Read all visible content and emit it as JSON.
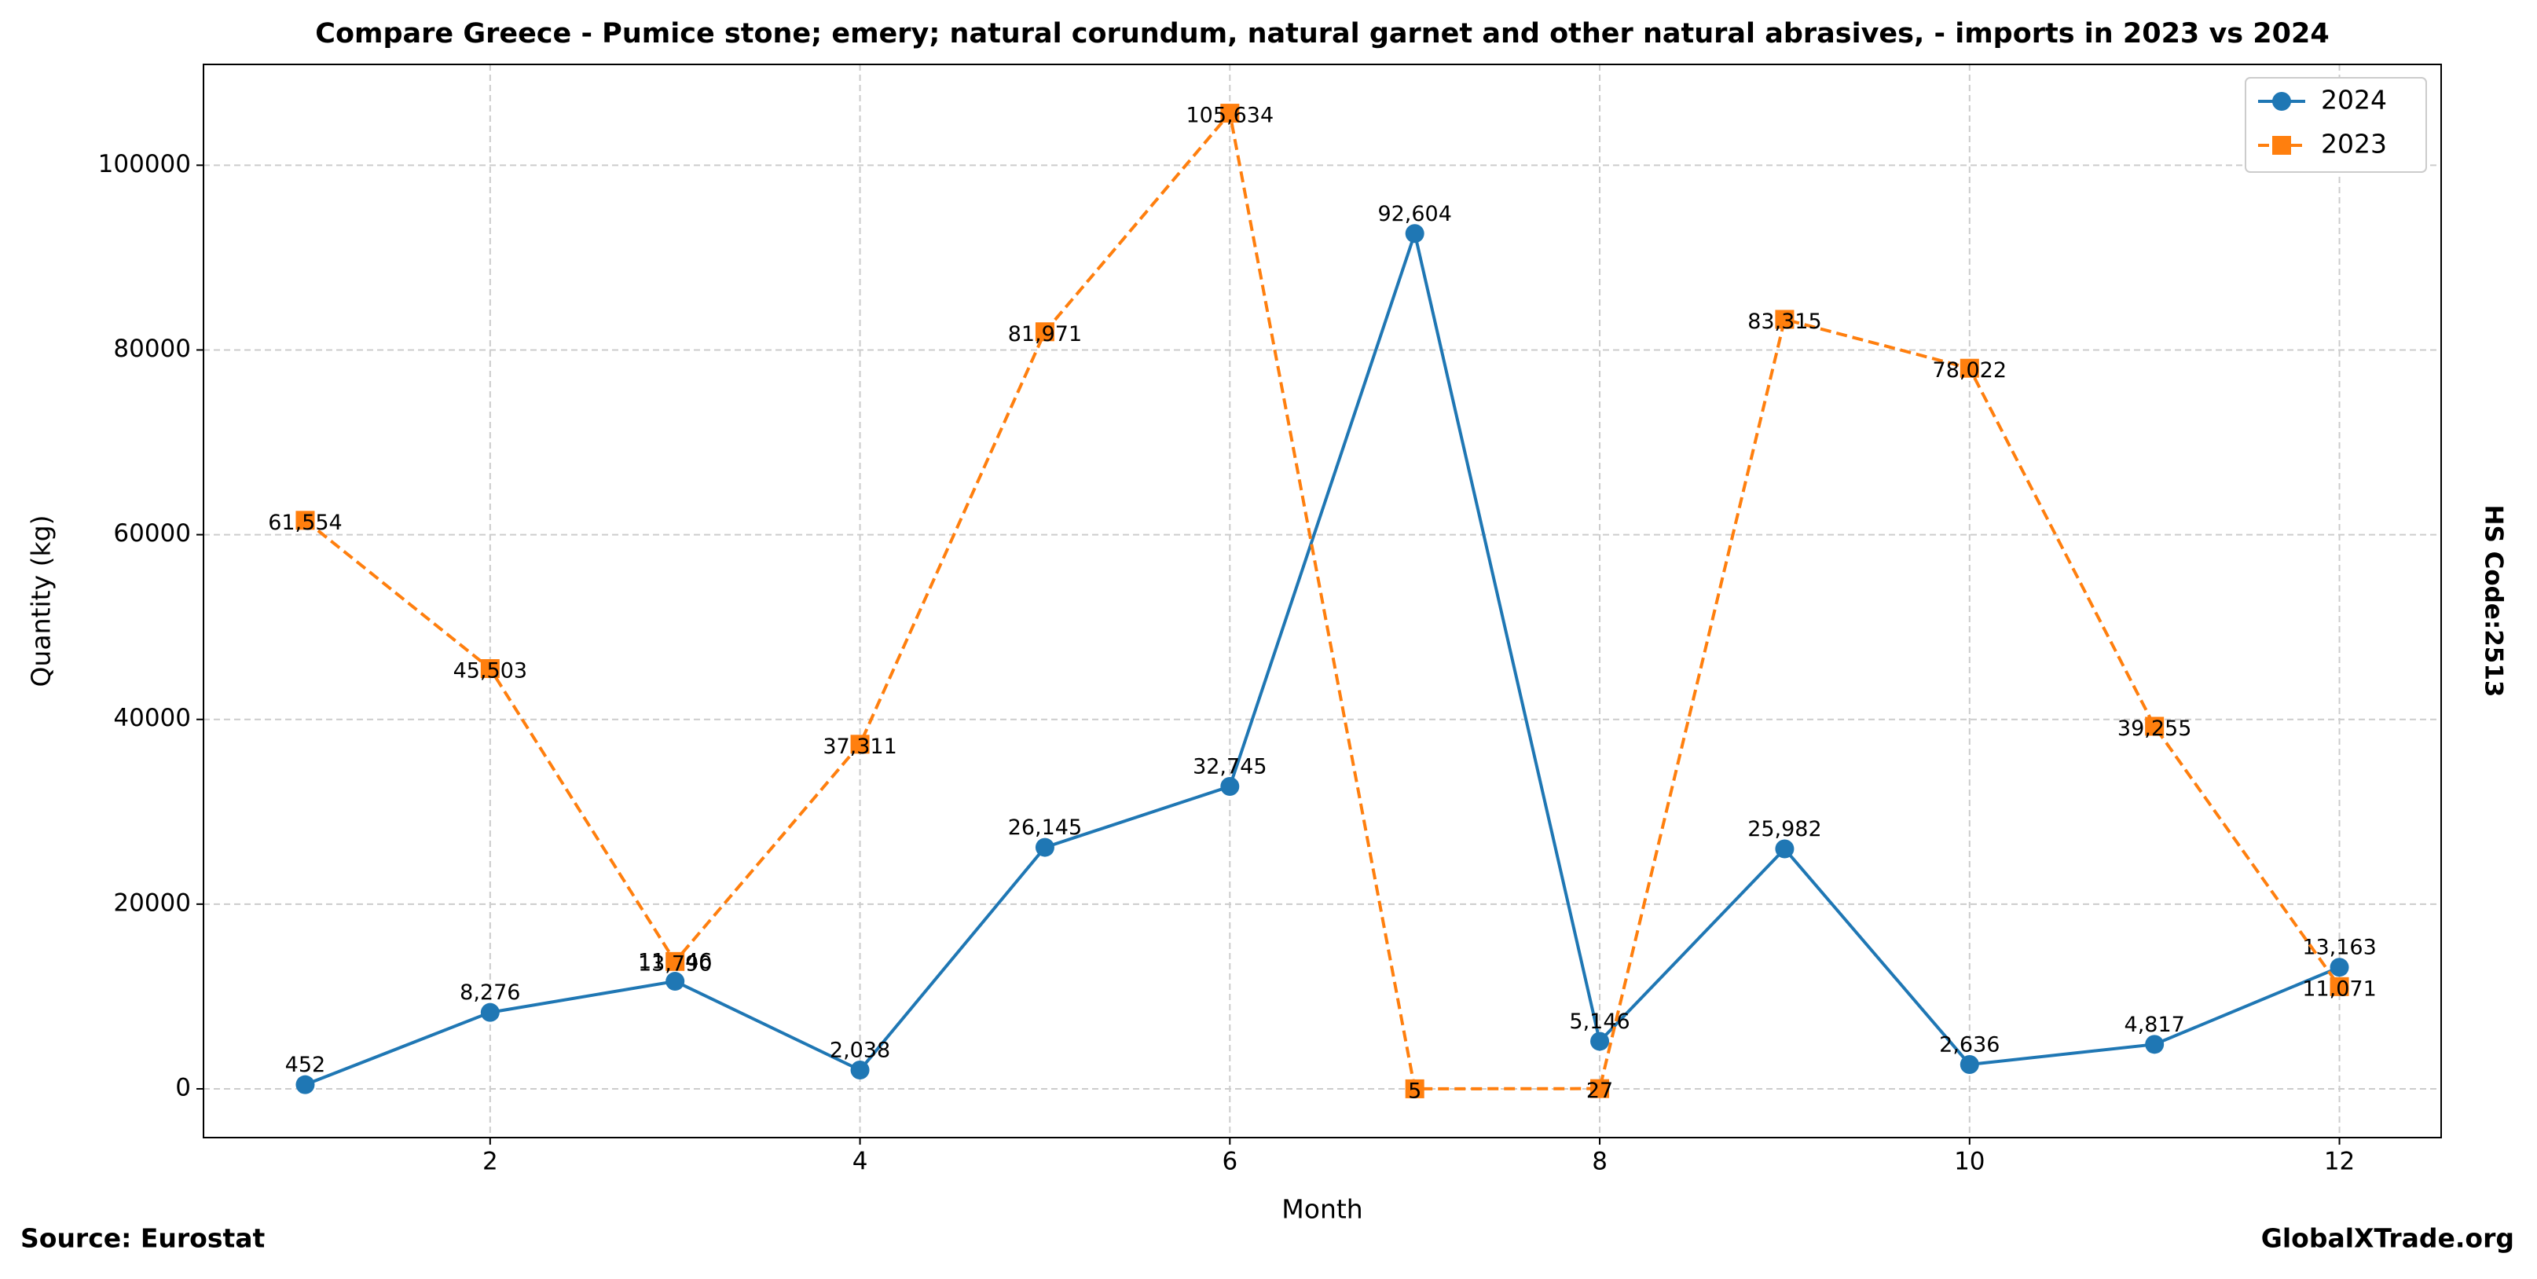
{
  "chart_data": {
    "type": "line",
    "title": "Compare Greece - Pumice stone; emery; natural corundum, natural garnet and other natural abrasives, - imports in 2023 vs 2024",
    "x_label": "Month",
    "y_label": "Quantity (kg)",
    "right_label": "HS Code:2513",
    "source": "Source: Eurostat",
    "watermark": "GlobalXTrade.org",
    "x": [
      1,
      2,
      3,
      4,
      5,
      6,
      7,
      8,
      9,
      10,
      11,
      12
    ],
    "series": [
      {
        "name": "2024",
        "color": "#1f77b4",
        "marker": "circle",
        "linestyle": "solid",
        "values": [
          452,
          8276,
          11646,
          2038,
          26145,
          32745,
          92604,
          5146,
          25982,
          2636,
          4817,
          13163
        ],
        "value_labels": [
          "452",
          "8,276",
          "11,646",
          "2,038",
          "26,145",
          "32,745",
          "92,604",
          "5,146",
          "25,982",
          "2,636",
          "4,817",
          "13,163"
        ]
      },
      {
        "name": "2023",
        "color": "#ff7f0e",
        "marker": "square",
        "linestyle": "dashed",
        "values": [
          61554,
          45503,
          13790,
          37311,
          81971,
          105634,
          5,
          27,
          83315,
          78022,
          39255,
          11071
        ],
        "value_labels": [
          "61,554",
          "45,503",
          "13,790",
          "37,311",
          "81,971",
          "105,634",
          "5",
          "27",
          "83,315",
          "78,022",
          "39,255",
          "11,071"
        ]
      }
    ],
    "xlim": [
      0.45,
      12.55
    ],
    "xticks": [
      2,
      4,
      6,
      8,
      10,
      12
    ],
    "ylim": [
      -5276,
      110915
    ],
    "yticks": [
      0,
      20000,
      40000,
      60000,
      80000,
      100000
    ],
    "grid": true,
    "legend": "upper right"
  }
}
